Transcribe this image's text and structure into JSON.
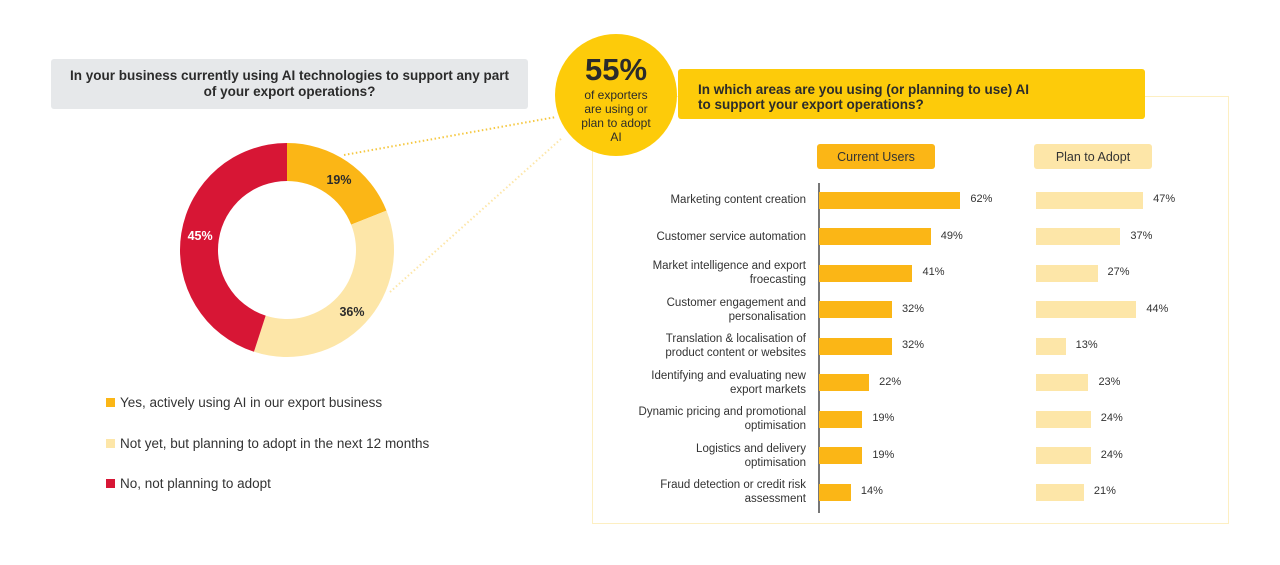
{
  "colors": {
    "current": "#fbb616",
    "plan": "#fde6a8",
    "no": "#d71635",
    "accent": "#fdcb0a"
  },
  "left": {
    "question": "In your business currently using AI technologies to support any part of your export operations?",
    "legend": [
      {
        "label": "Yes, actively using AI in our export business",
        "color": "#fbb616"
      },
      {
        "label": "Not yet, but planning to adopt in the next 12 months",
        "color": "#fde6a8"
      },
      {
        "label": "No, not planning to adopt",
        "color": "#d71635"
      }
    ]
  },
  "callout": {
    "value": "55%",
    "text": "of exporters are using or plan to adopt AI"
  },
  "right": {
    "question": "In which areas are you using (or planning to use) AI to support your export operations?"
  },
  "chart_data": [
    {
      "type": "pie",
      "donut": true,
      "categories": [
        "Yes, actively using AI in our export business",
        "Not yet, but planning to adopt in the next 12 months",
        "No, not planning to adopt"
      ],
      "values": [
        19,
        36,
        45
      ],
      "labels": [
        "19%",
        "36%",
        "45%"
      ]
    },
    {
      "type": "bar",
      "orientation": "horizontal",
      "categories": [
        "Marketing content creation",
        "Customer service automation",
        "Market intelligence and export froecasting",
        "Customer engagement and personalisation",
        "Translation & localisation of product content or websites",
        "Identifying and evaluating new export markets",
        "Dynamic pricing and promotional optimisation",
        "Logistics and delivery optimisation",
        "Fraud detection or credit risk assessment"
      ],
      "series": [
        {
          "name": "Current Users",
          "values": [
            62,
            49,
            41,
            32,
            32,
            22,
            19,
            19,
            14
          ]
        },
        {
          "name": "Plan to Adopt",
          "values": [
            47,
            37,
            27,
            44,
            13,
            23,
            24,
            24,
            21
          ]
        }
      ],
      "unit": "%"
    }
  ]
}
